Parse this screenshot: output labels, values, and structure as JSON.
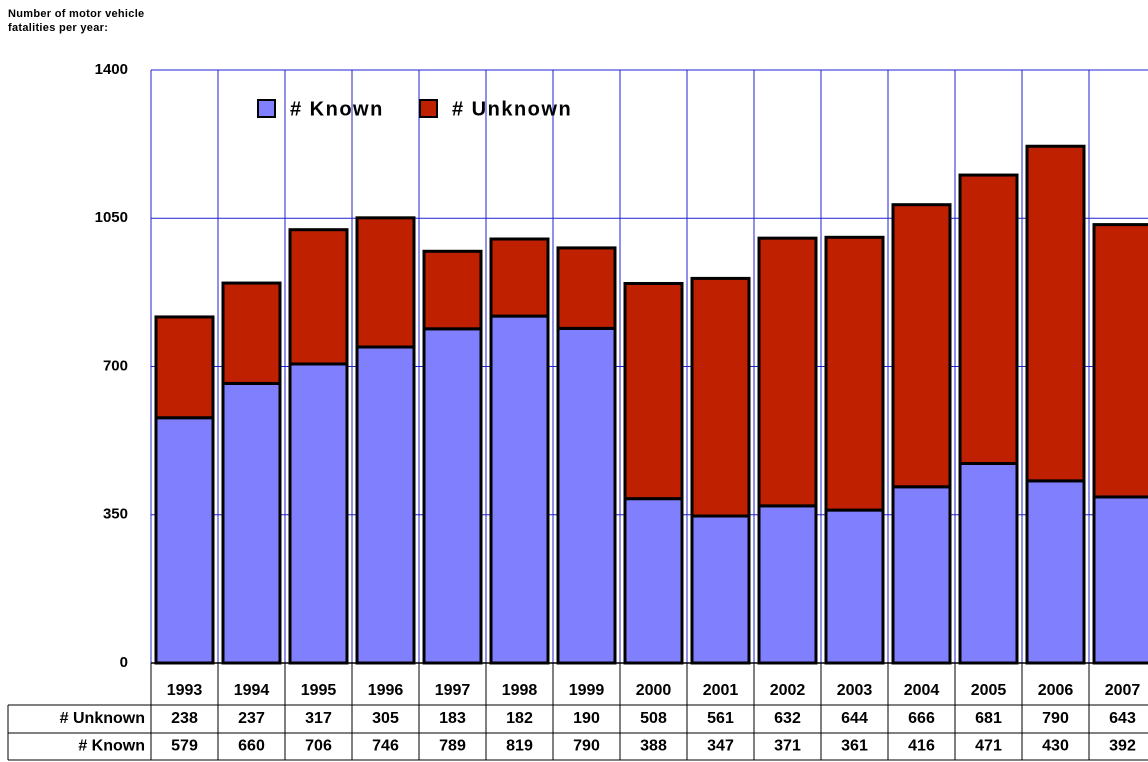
{
  "chart_data": {
    "type": "stacked_bar",
    "title": "Number of motor vehicle fatalities per year:",
    "categories": [
      "1993",
      "1994",
      "1995",
      "1996",
      "1997",
      "1998",
      "1999",
      "2000",
      "2001",
      "2002",
      "2003",
      "2004",
      "2005",
      "2006",
      "2007"
    ],
    "series": [
      {
        "name": "# Known",
        "color": "#8080ff",
        "values": [
          579,
          660,
          706,
          746,
          789,
          819,
          790,
          388,
          347,
          371,
          361,
          416,
          471,
          430,
          392
        ]
      },
      {
        "name": "# Unknown",
        "color": "#bf2000",
        "values": [
          238,
          237,
          317,
          305,
          183,
          182,
          190,
          508,
          561,
          632,
          644,
          666,
          681,
          790,
          643
        ]
      }
    ],
    "ylim": [
      0,
      1400
    ],
    "yticks": [
      0,
      350,
      700,
      1050,
      1400
    ],
    "grid": true
  }
}
